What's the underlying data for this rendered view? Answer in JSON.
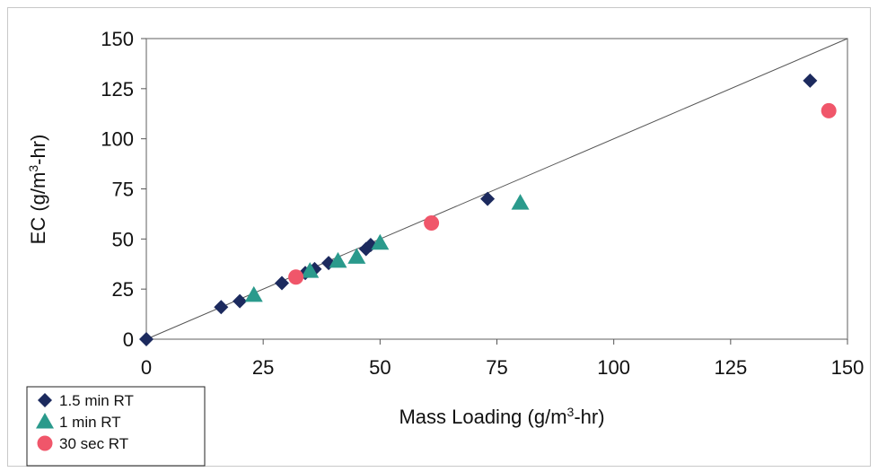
{
  "chart_data": {
    "type": "scatter",
    "xlabel": {
      "pre": "Mass Loading (g/m",
      "sup": "3",
      "post": "-hr)"
    },
    "ylabel": {
      "pre": "EC (g/m",
      "sup": "3",
      "post": "-hr)"
    },
    "xlim": [
      0,
      150
    ],
    "ylim": [
      0,
      150
    ],
    "xticks": [
      "0",
      "25",
      "50",
      "75",
      "100",
      "125",
      "150"
    ],
    "yticks": [
      "0",
      "25",
      "50",
      "75",
      "100",
      "125",
      "150"
    ],
    "grid": false,
    "legend_position": "bottom-left",
    "reference_line": {
      "name": "",
      "x": [
        0,
        150
      ],
      "y": [
        0,
        150
      ]
    },
    "series": [
      {
        "name": "1.5 min RT",
        "marker": "diamond",
        "color": "#1c2a5e",
        "points": [
          [
            0,
            0
          ],
          [
            16,
            16
          ],
          [
            20,
            19
          ],
          [
            29,
            28
          ],
          [
            34,
            33
          ],
          [
            36,
            35
          ],
          [
            39,
            38
          ],
          [
            47,
            45
          ],
          [
            48,
            47
          ],
          [
            73,
            70
          ],
          [
            142,
            129
          ]
        ]
      },
      {
        "name": "1 min RT",
        "marker": "triangle",
        "color": "#2a9a8c",
        "points": [
          [
            23,
            22
          ],
          [
            35,
            34
          ],
          [
            41,
            39
          ],
          [
            45,
            41
          ],
          [
            50,
            48
          ],
          [
            80,
            68
          ]
        ]
      },
      {
        "name": "30 sec RT",
        "marker": "circle",
        "color": "#f0566a",
        "points": [
          [
            32,
            31
          ],
          [
            61,
            58
          ],
          [
            146,
            114
          ]
        ]
      }
    ]
  }
}
